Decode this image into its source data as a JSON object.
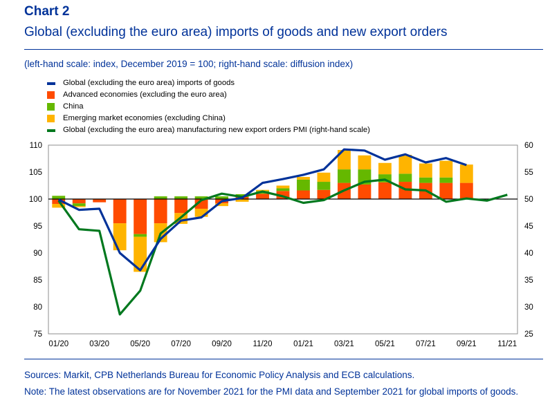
{
  "header": {
    "chart_number": "Chart 2",
    "title": "Global (excluding the euro area) imports of goods and new export orders",
    "subtitle": "(left-hand scale: index, December 2019 = 100; right-hand scale: diffusion index)"
  },
  "colors": {
    "global_imports": "#003299",
    "advanced": "#ff4b00",
    "china": "#65b800",
    "emerging": "#ffb400",
    "pmi": "#00781e",
    "text_blue": "#003299"
  },
  "legend": [
    {
      "label": "Global (excluding the euro area) imports of goods",
      "color": "#003299",
      "kind": "line"
    },
    {
      "label": "Advanced economies (excluding the euro area)",
      "color": "#ff4b00",
      "kind": "box"
    },
    {
      "label": "China",
      "color": "#65b800",
      "kind": "box"
    },
    {
      "label": "Emerging market economies (excluding China)",
      "color": "#ffb400",
      "kind": "box"
    },
    {
      "label": "Global (excluding the euro area) manufacturing new export orders PMI (right-hand scale)",
      "color": "#00781e",
      "kind": "line"
    }
  ],
  "chart_data": {
    "type": "bar",
    "months": [
      "01/20",
      "02/20",
      "03/20",
      "04/20",
      "05/20",
      "06/20",
      "07/20",
      "08/20",
      "09/20",
      "10/20",
      "11/20",
      "12/20",
      "01/21",
      "02/21",
      "03/21",
      "04/21",
      "05/21",
      "06/21",
      "07/21",
      "08/21",
      "09/21",
      "10/21",
      "11/21"
    ],
    "x_tick_labels": [
      "01/20",
      "03/20",
      "05/20",
      "07/20",
      "09/20",
      "11/20",
      "01/21",
      "03/21",
      "05/21",
      "07/21",
      "09/21",
      "11/21"
    ],
    "left_axis": {
      "label": "index, December 2019 = 100",
      "min": 75,
      "max": 110,
      "ticks": [
        110,
        105,
        100,
        95,
        90,
        85,
        80,
        75
      ]
    },
    "right_axis": {
      "label": "diffusion index",
      "min": 25,
      "max": 60,
      "ticks": [
        60,
        55,
        50,
        45,
        40,
        35,
        30,
        25
      ]
    },
    "series": [
      {
        "name": "Advanced economies (excluding the euro area)",
        "type": "stacked-bar",
        "axis": "left",
        "values": [
          -0.9,
          -0.8,
          -0.6,
          -4.5,
          -6.5,
          -4.5,
          -2.6,
          -1.8,
          -0.8,
          0.4,
          1.0,
          1.5,
          1.6,
          1.7,
          3.0,
          2.7,
          3.1,
          3.2,
          3.0,
          3.0,
          3.0,
          null,
          null
        ]
      },
      {
        "name": "China",
        "type": "stacked-bar",
        "axis": "left",
        "values": [
          0.6,
          -0.5,
          0.0,
          0.0,
          -0.5,
          0.5,
          0.5,
          0.5,
          0.5,
          0.5,
          0.5,
          0.5,
          2.0,
          1.5,
          2.5,
          2.8,
          1.5,
          1.5,
          1.0,
          1.0,
          0.0,
          null,
          null
        ]
      },
      {
        "name": "Emerging market economies (excluding China)",
        "type": "stacked-bar",
        "axis": "left",
        "values": [
          -0.7,
          -0.2,
          0.0,
          -5.0,
          -6.5,
          -3.5,
          -2.0,
          -1.5,
          -0.5,
          -0.5,
          0.2,
          0.5,
          0.5,
          1.7,
          3.6,
          2.6,
          2.1,
          3.5,
          2.6,
          3.1,
          3.4,
          null,
          null
        ]
      },
      {
        "name": "Global (excluding the euro area) imports of goods",
        "type": "line",
        "axis": "left",
        "values": [
          99.9,
          98.0,
          98.2,
          90.0,
          86.8,
          92.6,
          96.0,
          96.6,
          99.6,
          100.2,
          103.0,
          103.7,
          104.5,
          105.5,
          109.2,
          109.0,
          107.3,
          108.3,
          106.8,
          107.6,
          106.3,
          null,
          null
        ]
      },
      {
        "name": "Global (excluding the euro area) manufacturing new export orders PMI (right-hand scale)",
        "type": "line",
        "axis": "right",
        "values": [
          49.7,
          44.4,
          44.1,
          28.6,
          33.0,
          43.6,
          46.6,
          49.8,
          51.0,
          50.4,
          51.4,
          50.5,
          49.3,
          49.8,
          51.6,
          53.2,
          53.6,
          51.8,
          51.6,
          49.5,
          50.1,
          49.7,
          50.8
        ]
      }
    ]
  },
  "footer": {
    "sources": "Sources: Markit, CPB Netherlands Bureau for Economic Policy Analysis and ECB calculations.",
    "note": "Note: The latest observations are for November 2021 for the PMI data and September 2021 for global imports of goods."
  }
}
